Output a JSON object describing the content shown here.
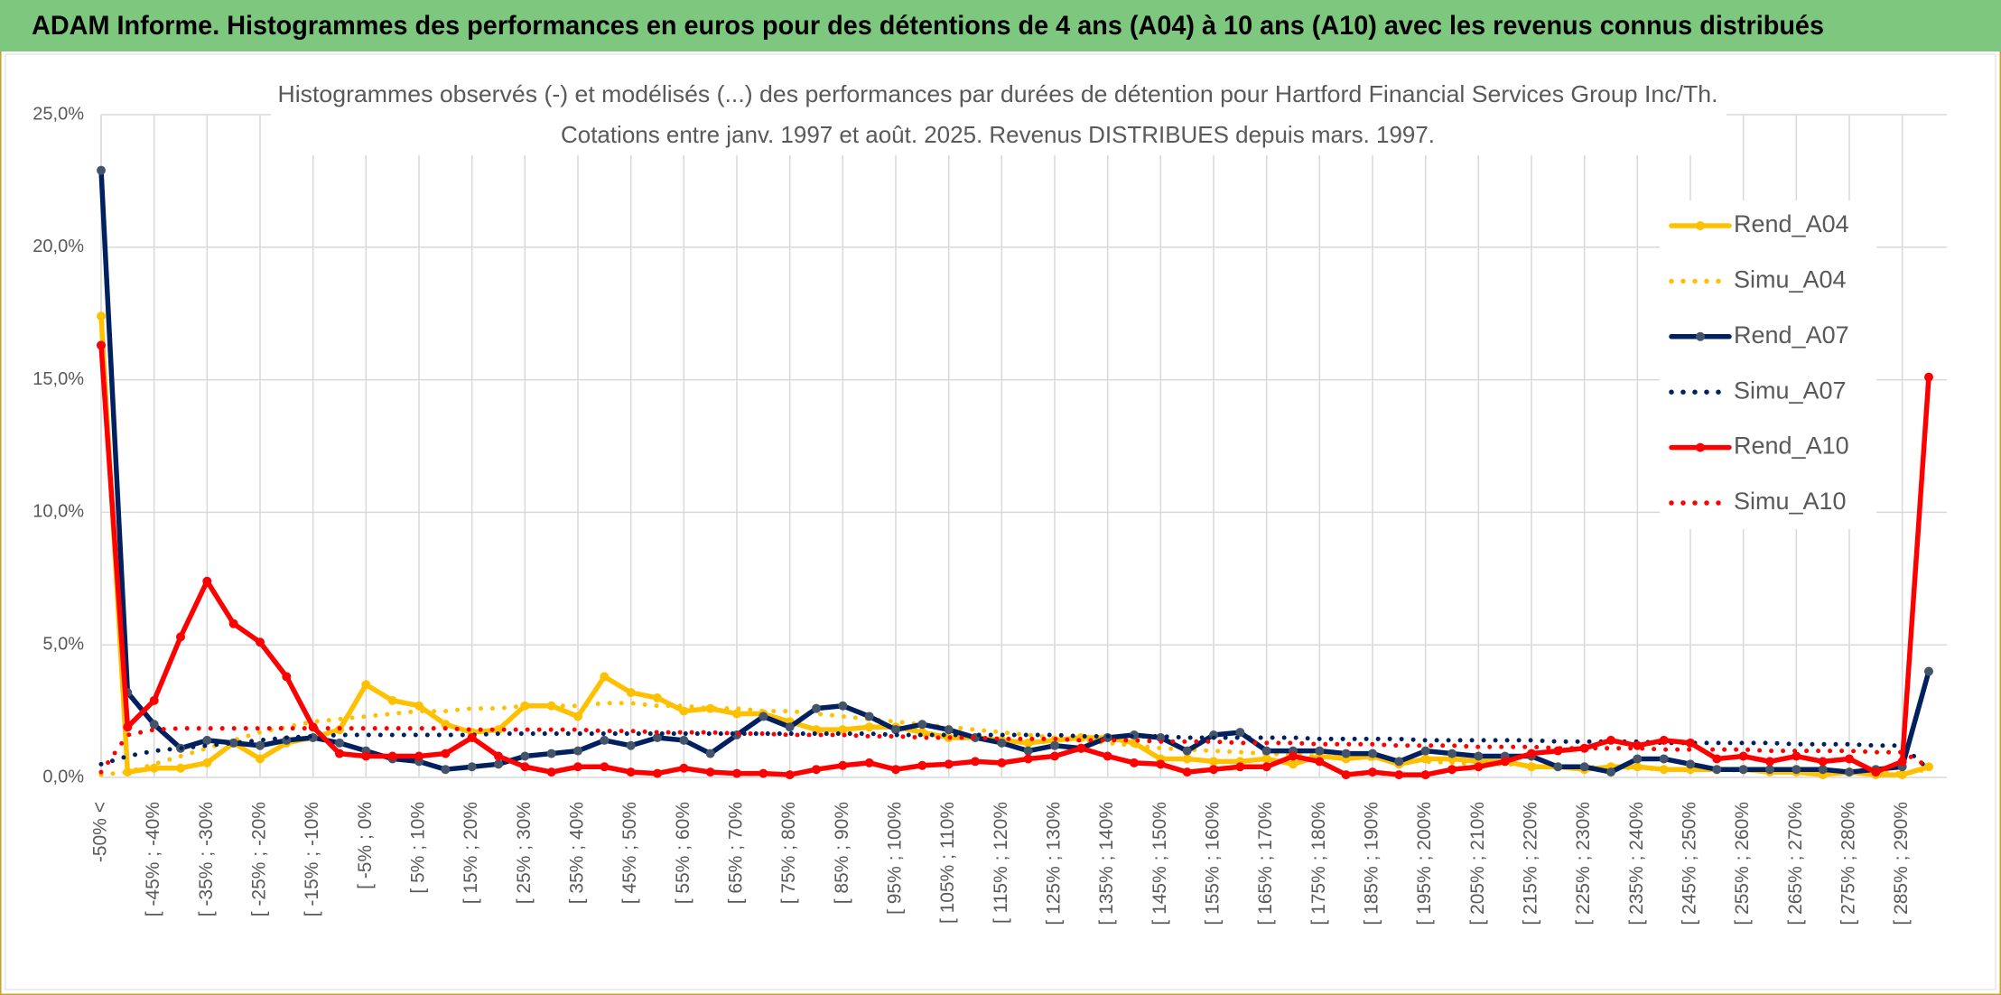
{
  "header": {
    "title": "ADAM Informe. Histogrammes des performances en euros pour des détentions de 4 ans (A04) à 10 ans (A10) avec les revenus connus distribués"
  },
  "chart_data": {
    "type": "line",
    "title": "Histogrammes observés (-) et modélisés (...) des performances par durées de détention pour Hartford Financial Services Group Inc/Th.",
    "subtitle": "Cotations entre janv. 1997 et août. 2025. Revenus DISTRIBUES depuis mars. 1997.",
    "categories": [
      "-50% <",
      null,
      "[ -45% ; -40%",
      null,
      "[ -35% ; -30%",
      null,
      "[ -25% ; -20%",
      null,
      "[ -15% ; -10%",
      null,
      "[ -5% ; 0%",
      null,
      "[ 5% ; 10%",
      null,
      "[ 15% ; 20%",
      null,
      "[ 25% ; 30%",
      null,
      "[ 35% ; 40%",
      null,
      "[ 45% ; 50%",
      null,
      "[ 55% ; 60%",
      null,
      "[ 65% ; 70%",
      null,
      "[ 75% ; 80%",
      null,
      "[ 85% ; 90%",
      null,
      "[ 95% ; 100%",
      null,
      "[ 105% ; 110%",
      null,
      "[ 115% ; 120%",
      null,
      "[ 125% ; 130%",
      null,
      "[ 135% ; 140%",
      null,
      "[ 145% ; 150%",
      null,
      "[ 155% ; 160%",
      null,
      "[ 165% ; 170%",
      null,
      "[ 175% ; 180%",
      null,
      "[ 185% ; 190%",
      null,
      "[ 195% ; 200%",
      null,
      "[ 205% ; 210%",
      null,
      "[ 215% ; 220%",
      null,
      "[ 225% ; 230%",
      null,
      "[ 235% ; 240%",
      null,
      "[ 245% ; 250%",
      null,
      "[ 255% ; 260%",
      null,
      "[ 265% ; 270%",
      null,
      "[ 275% ; 280%",
      null,
      "[ 285% ; 290%",
      null
    ],
    "ylim": [
      0,
      25
    ],
    "yticks": [
      {
        "value": 0,
        "label": "0,0%"
      },
      {
        "value": 5,
        "label": "5,0%"
      },
      {
        "value": 10,
        "label": "10,0%"
      },
      {
        "value": 15,
        "label": "15,0%"
      },
      {
        "value": 20,
        "label": "20,0%"
      },
      {
        "value": 25,
        "label": "25,0%"
      }
    ],
    "grid": true,
    "legend": "right",
    "series": [
      {
        "name": "Rend_A04",
        "color": "#ffc000",
        "style": "solid",
        "values": [
          17.4,
          0.2,
          0.35,
          0.35,
          0.55,
          1.3,
          0.7,
          1.3,
          1.5,
          1.8,
          3.5,
          2.9,
          2.7,
          2.0,
          1.7,
          1.8,
          2.7,
          2.7,
          2.3,
          3.8,
          3.2,
          3.0,
          2.5,
          2.6,
          2.4,
          2.4,
          2.1,
          1.8,
          1.8,
          1.9,
          1.9,
          1.7,
          1.5,
          1.5,
          1.4,
          1.3,
          1.4,
          1.5,
          1.5,
          1.3,
          0.7,
          0.7,
          0.6,
          0.6,
          0.7,
          0.5,
          0.8,
          0.7,
          0.8,
          0.5,
          0.7,
          0.7,
          0.6,
          0.6,
          0.4,
          0.4,
          0.3,
          0.4,
          0.4,
          0.3,
          0.3,
          0.3,
          0.3,
          0.2,
          0.2,
          0.1,
          0.2,
          0.1,
          0.1,
          0.4
        ]
      },
      {
        "name": "Simu_A04",
        "color": "#ffc000",
        "style": "dotted",
        "values": [
          0.1,
          0.2,
          0.5,
          0.8,
          1.1,
          1.4,
          1.7,
          1.9,
          2.1,
          2.2,
          2.3,
          2.4,
          2.5,
          2.5,
          2.6,
          2.6,
          2.7,
          2.7,
          2.7,
          2.8,
          2.8,
          2.7,
          2.7,
          2.6,
          2.6,
          2.5,
          2.5,
          2.4,
          2.3,
          2.2,
          2.1,
          2.0,
          1.9,
          1.8,
          1.7,
          1.6,
          1.5,
          1.4,
          1.3,
          1.2,
          1.1,
          1.05,
          1.0,
          0.95,
          0.9,
          0.85,
          0.8,
          0.75,
          0.7,
          0.65,
          0.6,
          0.55,
          0.5,
          0.5,
          0.45,
          0.4,
          0.4,
          0.35,
          0.35,
          0.3,
          0.3,
          0.3,
          0.25,
          0.25,
          0.2,
          0.2,
          0.2,
          0.2,
          0.15,
          0.3
        ]
      },
      {
        "name": "Rend_A07",
        "color": "#002060",
        "style": "solid",
        "values": [
          22.9,
          3.2,
          2.0,
          1.1,
          1.4,
          1.3,
          1.2,
          1.4,
          1.5,
          1.3,
          1.0,
          0.7,
          0.6,
          0.3,
          0.4,
          0.5,
          0.8,
          0.9,
          1.0,
          1.4,
          1.2,
          1.5,
          1.4,
          0.9,
          1.6,
          2.3,
          1.9,
          2.6,
          2.7,
          2.3,
          1.8,
          2.0,
          1.8,
          1.5,
          1.3,
          1.0,
          1.2,
          1.1,
          1.5,
          1.6,
          1.5,
          1.0,
          1.6,
          1.7,
          1.0,
          1.0,
          1.0,
          0.9,
          0.9,
          0.6,
          1.0,
          0.9,
          0.8,
          0.8,
          0.8,
          0.4,
          0.4,
          0.2,
          0.7,
          0.7,
          0.5,
          0.3,
          0.3,
          0.3,
          0.3,
          0.3,
          0.2,
          0.3,
          0.4,
          4.0
        ]
      },
      {
        "name": "Simu_A07",
        "color": "#002060",
        "style": "dotted",
        "values": [
          0.5,
          0.8,
          1.0,
          1.1,
          1.2,
          1.3,
          1.4,
          1.5,
          1.55,
          1.6,
          1.6,
          1.6,
          1.6,
          1.6,
          1.6,
          1.65,
          1.65,
          1.65,
          1.65,
          1.65,
          1.65,
          1.65,
          1.65,
          1.65,
          1.65,
          1.65,
          1.65,
          1.65,
          1.65,
          1.65,
          1.6,
          1.6,
          1.6,
          1.6,
          1.6,
          1.6,
          1.6,
          1.55,
          1.55,
          1.55,
          1.55,
          1.5,
          1.5,
          1.5,
          1.5,
          1.5,
          1.45,
          1.45,
          1.45,
          1.45,
          1.4,
          1.4,
          1.4,
          1.4,
          1.4,
          1.35,
          1.35,
          1.35,
          1.35,
          1.3,
          1.3,
          1.3,
          1.3,
          1.3,
          1.25,
          1.25,
          1.25,
          1.2,
          1.2,
          0.3
        ]
      },
      {
        "name": "Rend_A10",
        "color": "#ff0000",
        "style": "solid",
        "values": [
          16.3,
          1.9,
          2.9,
          5.3,
          7.4,
          5.8,
          5.1,
          3.8,
          1.9,
          0.9,
          0.8,
          0.8,
          0.8,
          0.9,
          1.5,
          0.8,
          0.4,
          0.2,
          0.4,
          0.4,
          0.2,
          0.15,
          0.35,
          0.2,
          0.15,
          0.15,
          0.1,
          0.3,
          0.45,
          0.55,
          0.3,
          0.45,
          0.5,
          0.6,
          0.55,
          0.7,
          0.8,
          1.1,
          0.8,
          0.55,
          0.5,
          0.2,
          0.3,
          0.4,
          0.4,
          0.8,
          0.6,
          0.1,
          0.2,
          0.1,
          0.1,
          0.3,
          0.4,
          0.6,
          0.9,
          1.0,
          1.1,
          1.4,
          1.2,
          1.4,
          1.3,
          0.7,
          0.8,
          0.6,
          0.8,
          0.6,
          0.7,
          0.2,
          0.6,
          15.1
        ]
      },
      {
        "name": "Simu_A10",
        "color": "#ff0000",
        "style": "dotted",
        "values": [
          0.2,
          1.6,
          1.8,
          1.85,
          1.85,
          1.85,
          1.85,
          1.85,
          1.85,
          1.85,
          1.85,
          1.85,
          1.85,
          1.85,
          1.8,
          1.8,
          1.8,
          1.8,
          1.8,
          1.75,
          1.75,
          1.7,
          1.7,
          1.7,
          1.65,
          1.65,
          1.6,
          1.6,
          1.6,
          1.55,
          1.55,
          1.5,
          1.5,
          1.5,
          1.45,
          1.45,
          1.45,
          1.4,
          1.4,
          1.4,
          1.35,
          1.35,
          1.35,
          1.3,
          1.3,
          1.3,
          1.25,
          1.25,
          1.25,
          1.2,
          1.2,
          1.2,
          1.15,
          1.15,
          1.15,
          1.1,
          1.1,
          1.1,
          1.1,
          1.05,
          1.05,
          1.05,
          1.05,
          1.0,
          1.0,
          1.0,
          1.0,
          0.95,
          0.95,
          0.4
        ]
      }
    ]
  }
}
